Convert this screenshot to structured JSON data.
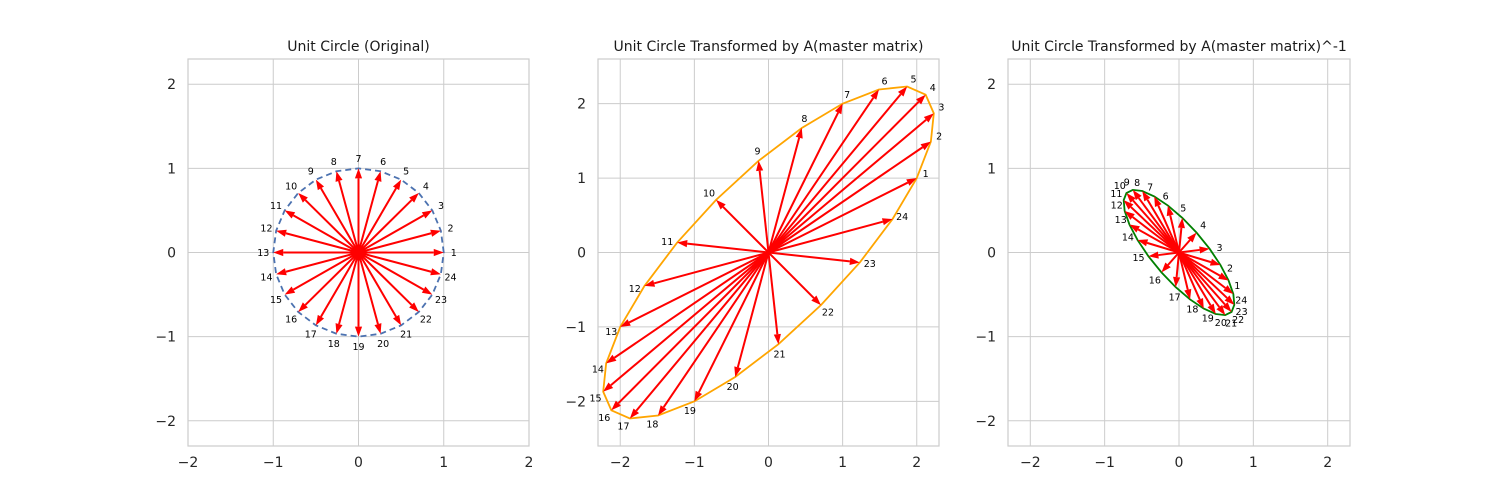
{
  "chart_data": [
    {
      "type": "vector",
      "title": "Unit Circle (Original)",
      "xlim": [
        -2.0,
        2.0
      ],
      "ylim": [
        -2.3,
        2.3
      ],
      "xticks": [
        -2,
        -1,
        0,
        1,
        2
      ],
      "yticks": [
        -2,
        -1,
        0,
        1,
        2
      ],
      "xtick_labels": [
        "−2",
        "−1",
        "0",
        "1",
        "2"
      ],
      "ytick_labels": [
        "−2",
        "−1",
        "0",
        "1",
        "2"
      ],
      "grid": true,
      "outline": {
        "style": "dashed",
        "color": "#4c72b0"
      },
      "arrow_color": "#ff0000",
      "vectors": [
        {
          "label": "1",
          "x": 1.0,
          "y": 0.0
        },
        {
          "label": "2",
          "x": 0.966,
          "y": 0.259
        },
        {
          "label": "3",
          "x": 0.866,
          "y": 0.5
        },
        {
          "label": "4",
          "x": 0.707,
          "y": 0.707
        },
        {
          "label": "5",
          "x": 0.5,
          "y": 0.866
        },
        {
          "label": "6",
          "x": 0.259,
          "y": 0.966
        },
        {
          "label": "7",
          "x": 0.0,
          "y": 1.0
        },
        {
          "label": "8",
          "x": -0.259,
          "y": 0.966
        },
        {
          "label": "9",
          "x": -0.5,
          "y": 0.866
        },
        {
          "label": "10",
          "x": -0.707,
          "y": 0.707
        },
        {
          "label": "11",
          "x": -0.866,
          "y": 0.5
        },
        {
          "label": "12",
          "x": -0.966,
          "y": 0.259
        },
        {
          "label": "13",
          "x": -1.0,
          "y": 0.0
        },
        {
          "label": "14",
          "x": -0.966,
          "y": -0.259
        },
        {
          "label": "15",
          "x": -0.866,
          "y": -0.5
        },
        {
          "label": "16",
          "x": -0.707,
          "y": -0.707
        },
        {
          "label": "17",
          "x": -0.5,
          "y": -0.866
        },
        {
          "label": "18",
          "x": -0.259,
          "y": -0.966
        },
        {
          "label": "19",
          "x": 0.0,
          "y": -1.0
        },
        {
          "label": "20",
          "x": 0.259,
          "y": -0.966
        },
        {
          "label": "21",
          "x": 0.5,
          "y": -0.866
        },
        {
          "label": "22",
          "x": 0.707,
          "y": -0.707
        },
        {
          "label": "23",
          "x": 0.866,
          "y": -0.5
        },
        {
          "label": "24",
          "x": 0.966,
          "y": -0.259
        }
      ]
    },
    {
      "type": "vector",
      "title": "Unit Circle Transformed by A(master matrix)",
      "xlim": [
        -2.3,
        2.3
      ],
      "ylim": [
        -2.6,
        2.6
      ],
      "xticks": [
        -2,
        -1,
        0,
        1,
        2
      ],
      "yticks": [
        -2,
        -1,
        0,
        1,
        2
      ],
      "xtick_labels": [
        "−2",
        "−1",
        "0",
        "1",
        "2"
      ],
      "ytick_labels": [
        "−2",
        "−1",
        "0",
        "1",
        "2"
      ],
      "grid": true,
      "outline": {
        "style": "solid",
        "color": "#ffa500"
      },
      "arrow_color": "#ff0000",
      "vectors": [
        {
          "label": "1",
          "x": 2.0,
          "y": 1.0
        },
        {
          "label": "2",
          "x": 2.19,
          "y": 1.49
        },
        {
          "label": "3",
          "x": 2.23,
          "y": 1.87
        },
        {
          "label": "4",
          "x": 2.12,
          "y": 2.12
        },
        {
          "label": "5",
          "x": 1.87,
          "y": 2.23
        },
        {
          "label": "6",
          "x": 1.49,
          "y": 2.19
        },
        {
          "label": "7",
          "x": 1.0,
          "y": 2.0
        },
        {
          "label": "8",
          "x": 0.449,
          "y": 1.673
        },
        {
          "label": "9",
          "x": -0.134,
          "y": 1.232
        },
        {
          "label": "10",
          "x": -0.707,
          "y": 0.707
        },
        {
          "label": "11",
          "x": -1.232,
          "y": 0.134
        },
        {
          "label": "12",
          "x": -1.673,
          "y": -0.449
        },
        {
          "label": "13",
          "x": -2.0,
          "y": -1.0
        },
        {
          "label": "14",
          "x": -2.19,
          "y": -1.49
        },
        {
          "label": "15",
          "x": -2.23,
          "y": -1.87
        },
        {
          "label": "16",
          "x": -2.12,
          "y": -2.12
        },
        {
          "label": "17",
          "x": -1.87,
          "y": -2.23
        },
        {
          "label": "18",
          "x": -1.49,
          "y": -2.19
        },
        {
          "label": "19",
          "x": -1.0,
          "y": -2.0
        },
        {
          "label": "20",
          "x": -0.449,
          "y": -1.673
        },
        {
          "label": "21",
          "x": 0.134,
          "y": -1.232
        },
        {
          "label": "22",
          "x": 0.707,
          "y": -0.707
        },
        {
          "label": "23",
          "x": 1.232,
          "y": -0.134
        },
        {
          "label": "24",
          "x": 1.673,
          "y": 0.449
        }
      ]
    },
    {
      "type": "vector",
      "title": "Unit Circle Transformed by A(master matrix)^-1",
      "xlim": [
        -2.3,
        2.3
      ],
      "ylim": [
        -2.3,
        2.3
      ],
      "xticks": [
        -2,
        -1,
        0,
        1,
        2
      ],
      "yticks": [
        -2,
        -1,
        0,
        1,
        2
      ],
      "xtick_labels": [
        "−2",
        "−1",
        "0",
        "1",
        "2"
      ],
      "ytick_labels": [
        "−2",
        "−1",
        "0",
        "1",
        "2"
      ],
      "grid": true,
      "outline": {
        "style": "solid",
        "color": "#008000"
      },
      "arrow_color": "#ff0000",
      "vectors": [
        {
          "label": "1",
          "x": 0.667,
          "y": -0.333
        },
        {
          "label": "2",
          "x": 0.558,
          "y": -0.149
        },
        {
          "label": "3",
          "x": 0.411,
          "y": 0.045
        },
        {
          "label": "4",
          "x": 0.236,
          "y": 0.236
        },
        {
          "label": "5",
          "x": 0.045,
          "y": 0.411
        },
        {
          "label": "6",
          "x": -0.149,
          "y": 0.558
        },
        {
          "label": "7",
          "x": -0.333,
          "y": 0.667
        },
        {
          "label": "8",
          "x": -0.494,
          "y": 0.731
        },
        {
          "label": "9",
          "x": -0.622,
          "y": 0.744
        },
        {
          "label": "10",
          "x": -0.707,
          "y": 0.707
        },
        {
          "label": "11",
          "x": -0.744,
          "y": 0.622
        },
        {
          "label": "12",
          "x": -0.731,
          "y": 0.494
        },
        {
          "label": "13",
          "x": -0.667,
          "y": 0.333
        },
        {
          "label": "14",
          "x": -0.558,
          "y": 0.149
        },
        {
          "label": "15",
          "x": -0.411,
          "y": -0.045
        },
        {
          "label": "16",
          "x": -0.236,
          "y": -0.236
        },
        {
          "label": "17",
          "x": -0.045,
          "y": -0.411
        },
        {
          "label": "18",
          "x": 0.149,
          "y": -0.558
        },
        {
          "label": "19",
          "x": 0.333,
          "y": -0.667
        },
        {
          "label": "20",
          "x": 0.494,
          "y": -0.731
        },
        {
          "label": "21",
          "x": 0.622,
          "y": -0.744
        },
        {
          "label": "22",
          "x": 0.707,
          "y": -0.707
        },
        {
          "label": "23",
          "x": 0.744,
          "y": -0.622
        },
        {
          "label": "24",
          "x": 0.731,
          "y": -0.494
        }
      ]
    }
  ]
}
